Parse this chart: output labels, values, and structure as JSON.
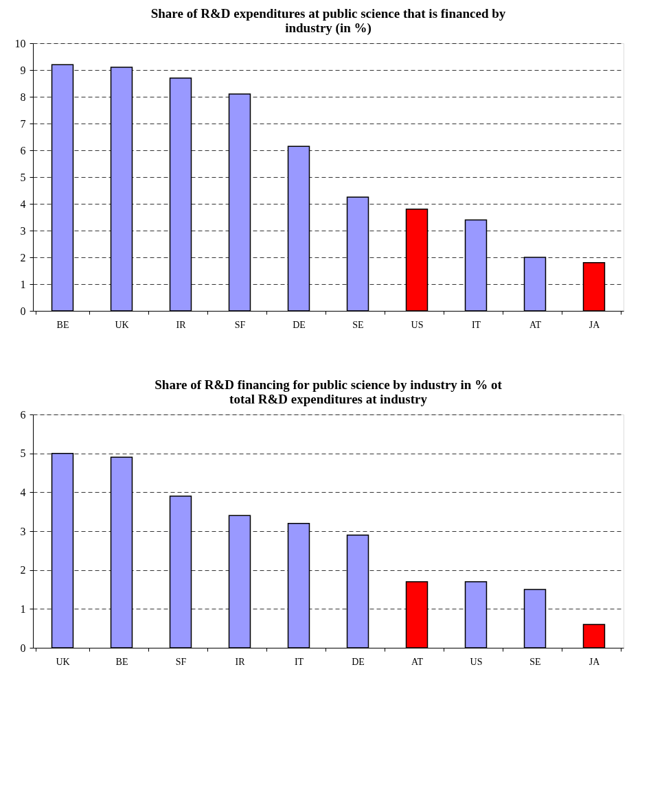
{
  "chart_data": [
    {
      "type": "bar",
      "title": "Share of R&D expenditures at public science that is financed by industry (in %)",
      "categories": [
        "BE",
        "UK",
        "IR",
        "SF",
        "DE",
        "SE",
        "US",
        "IT",
        "AT",
        "JA"
      ],
      "values": [
        9.2,
        9.1,
        8.7,
        8.1,
        6.15,
        4.25,
        3.8,
        3.4,
        2.0,
        1.8
      ],
      "colors": [
        "#9999ff",
        "#9999ff",
        "#9999ff",
        "#9999ff",
        "#9999ff",
        "#9999ff",
        "#ff0000",
        "#9999ff",
        "#9999ff",
        "#ff0000"
      ],
      "ylim": [
        0,
        10
      ],
      "yticks": [
        0,
        1,
        2,
        3,
        4,
        5,
        6,
        7,
        8,
        9,
        10
      ],
      "grid": "y",
      "legend": false
    },
    {
      "type": "bar",
      "title": "Share of R&D financing for public science by industry in % ot total R&D expenditures at industry",
      "categories": [
        "UK",
        "BE",
        "SF",
        "IR",
        "IT",
        "DE",
        "AT",
        "US",
        "SE",
        "JA"
      ],
      "values": [
        5.0,
        4.9,
        3.9,
        3.4,
        3.2,
        2.9,
        1.7,
        1.7,
        1.5,
        0.6
      ],
      "colors": [
        "#9999ff",
        "#9999ff",
        "#9999ff",
        "#9999ff",
        "#9999ff",
        "#9999ff",
        "#ff0000",
        "#9999ff",
        "#9999ff",
        "#ff0000"
      ],
      "ylim": [
        0,
        6
      ],
      "yticks": [
        0,
        1,
        2,
        3,
        4,
        5,
        6
      ],
      "grid": "y",
      "legend": false
    }
  ]
}
